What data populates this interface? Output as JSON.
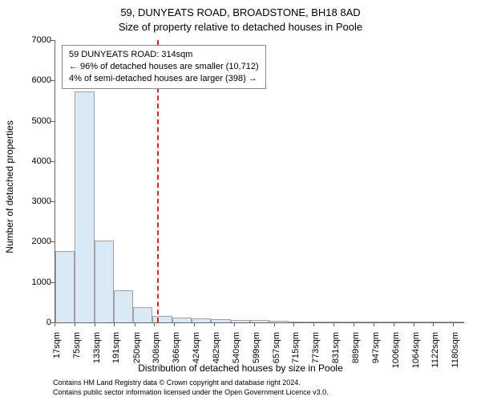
{
  "titles": {
    "main": "59, DUNYEATS ROAD, BROADSTONE, BH18 8AD",
    "sub": "Size of property relative to detached houses in Poole",
    "y_axis": "Number of detached properties",
    "x_axis": "Distribution of detached houses by size in Poole"
  },
  "annotation": {
    "line1": "59 DUNYEATS ROAD: 314sqm",
    "line2": "← 96% of detached houses are smaller (10,712)",
    "line3": "4% of semi-detached houses are larger (398) →"
  },
  "footer": {
    "line1": "Contains HM Land Registry data © Crown copyright and database right 2024.",
    "line2": "Contains public sector information licensed under the Open Government Licence v3.0."
  },
  "chart": {
    "type": "histogram",
    "background_color": "#ffffff",
    "bar_fill": "#dbe8f6",
    "bar_stroke": "#a0a0a0",
    "reference_color": "#d62728",
    "reference_x_value": 314,
    "x_min": 17,
    "x_max": 1210,
    "y_min": 0,
    "y_max": 7000,
    "y_ticks": [
      0,
      1000,
      2000,
      3000,
      4000,
      5000,
      6000,
      7000
    ],
    "x_tick_labels": [
      "17sqm",
      "75sqm",
      "133sqm",
      "191sqm",
      "250sqm",
      "308sqm",
      "366sqm",
      "424sqm",
      "482sqm",
      "540sqm",
      "599sqm",
      "657sqm",
      "715sqm",
      "773sqm",
      "831sqm",
      "889sqm",
      "947sqm",
      "1006sqm",
      "1064sqm",
      "1122sqm",
      "1180sqm"
    ],
    "x_tick_values": [
      17,
      75,
      133,
      191,
      250,
      308,
      366,
      424,
      482,
      540,
      599,
      657,
      715,
      773,
      831,
      889,
      947,
      1006,
      1064,
      1122,
      1180
    ],
    "bars": [
      {
        "v": 1770
      },
      {
        "v": 5720
      },
      {
        "v": 2030
      },
      {
        "v": 790
      },
      {
        "v": 370
      },
      {
        "v": 155
      },
      {
        "v": 120
      },
      {
        "v": 95
      },
      {
        "v": 70
      },
      {
        "v": 60
      },
      {
        "v": 55
      },
      {
        "v": 50
      },
      {
        "v": 20
      },
      {
        "v": 8
      },
      {
        "v": 8
      },
      {
        "v": 8
      },
      {
        "v": 6
      },
      {
        "v": 6
      },
      {
        "v": 5
      },
      {
        "v": 5
      },
      {
        "v": 4
      }
    ],
    "bar_count": 21,
    "title_fontsize": 13,
    "axis_label_fontsize": 12,
    "tick_fontsize": 11,
    "annotation_fontsize": 11,
    "footer_fontsize": 9
  }
}
